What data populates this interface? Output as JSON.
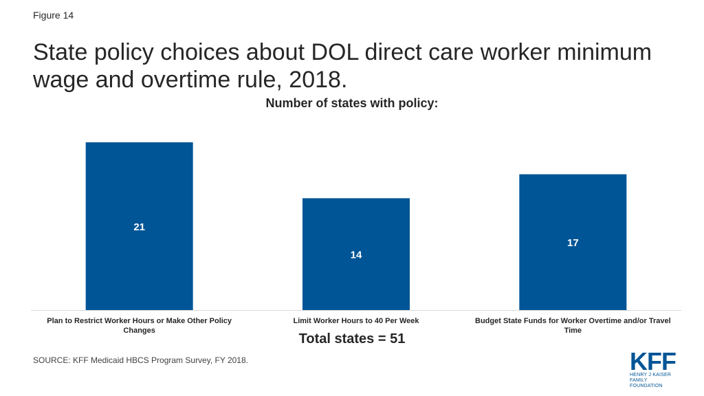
{
  "figure_label": "Figure 14",
  "title": "State policy choices about DOL direct care worker minimum wage and overtime rule, 2018.",
  "subtitle": "Number of states with policy:",
  "total_note": "Total states = 51",
  "source": "SOURCE:  KFF Medicaid HBCS Program Survey,  FY 2018.",
  "logo": {
    "mark": "KFF",
    "line1": "HENRY J KAISER",
    "line2": "FAMILY FOUNDATION",
    "color": "#005596"
  },
  "chart_data": {
    "type": "bar",
    "categories": [
      "Plan to Restrict Worker Hours or Make Other Policy Changes",
      "Limit Worker Hours to 40 Per Week",
      "Budget State Funds for Worker Overtime and/or Travel Time"
    ],
    "values": [
      21,
      14,
      17
    ],
    "ylim": [
      0,
      21
    ],
    "bar_color": "#005596",
    "label_color": "#ffffff",
    "grid": false,
    "legend": "none"
  }
}
